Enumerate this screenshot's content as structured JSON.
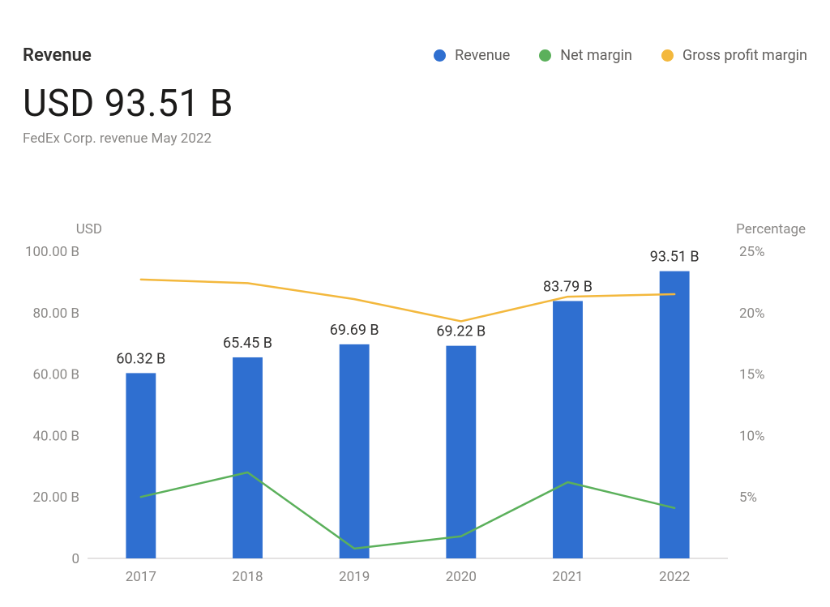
{
  "header": {
    "section_title": "Revenue",
    "legend": [
      {
        "label": "Revenue",
        "color": "#2f6fd0"
      },
      {
        "label": "Net margin",
        "color": "#5bb05b"
      },
      {
        "label": "Gross profit margin",
        "color": "#f3b83d"
      }
    ]
  },
  "kpi": {
    "value": "USD 93.51 B",
    "subtitle": "FedEx Corp. revenue May 2022"
  },
  "chart": {
    "type": "bar+line-dual-axis",
    "categories": [
      "2017",
      "2018",
      "2019",
      "2020",
      "2021",
      "2022"
    ],
    "bars": {
      "color": "#2f6fd0",
      "values": [
        60.32,
        65.45,
        69.69,
        69.22,
        83.79,
        93.51
      ],
      "labels": [
        "60.32 B",
        "65.45 B",
        "69.69 B",
        "69.22 B",
        "83.79 B",
        "93.51 B"
      ],
      "bar_width_frac": 0.28
    },
    "lines": [
      {
        "name": "net_margin",
        "color": "#5bb05b",
        "stroke_width": 2.5,
        "values": [
          5.0,
          7.0,
          0.8,
          1.8,
          6.2,
          4.1
        ]
      },
      {
        "name": "gross_profit_margin",
        "color": "#f3b83d",
        "stroke_width": 2.5,
        "values": [
          22.7,
          22.4,
          21.1,
          19.3,
          21.3,
          21.5
        ]
      }
    ],
    "y_left": {
      "title": "USD",
      "min": 0,
      "max": 100,
      "step": 20,
      "tick_labels": [
        "0",
        "20.00 B",
        "40.00 B",
        "60.00 B",
        "80.00 B",
        "100.00 B"
      ]
    },
    "y_right": {
      "title": "Percentage",
      "min": 0,
      "max": 25,
      "step": 5,
      "tick_labels": [
        "",
        "5%",
        "10%",
        "15%",
        "20%",
        "25%"
      ]
    },
    "axis_color": "#c8c6c4",
    "text_color": "#8a8886",
    "label_fontsize": 17
  }
}
